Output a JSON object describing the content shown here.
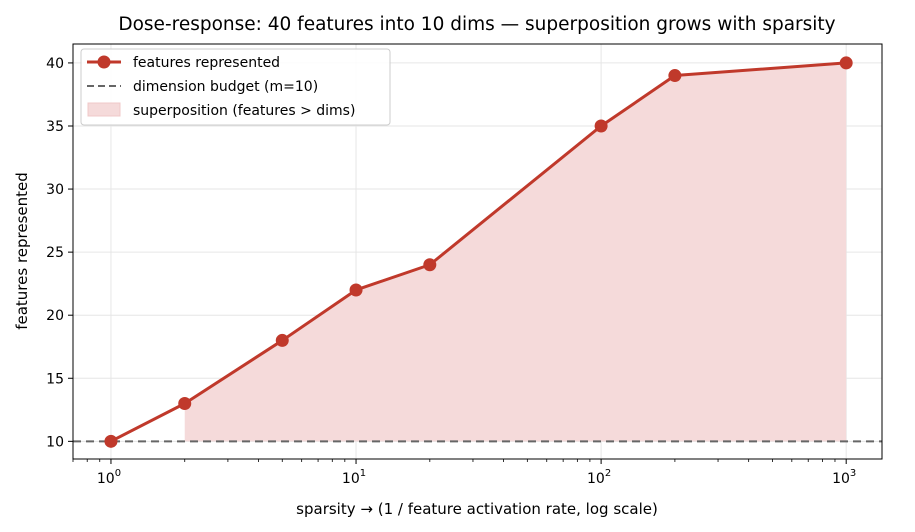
{
  "chart_data": {
    "type": "line",
    "title": "Dose-response: 40 features into 10 dims — superposition grows with sparsity",
    "xlabel": "sparsity  →  (1 / feature activation rate, log scale)",
    "ylabel": "features represented",
    "xscale": "log",
    "xlim": [
      0.7,
      1400
    ],
    "ylim": [
      8.6,
      41.5
    ],
    "xticks": [
      {
        "value": 1,
        "base": "10",
        "exp": "0"
      },
      {
        "value": 10,
        "base": "10",
        "exp": "1"
      },
      {
        "value": 100,
        "base": "10",
        "exp": "2"
      },
      {
        "value": 1000,
        "base": "10",
        "exp": "3"
      }
    ],
    "yticks": [
      10,
      15,
      20,
      25,
      30,
      35,
      40
    ],
    "grid": true,
    "legend_position": "top-left",
    "series": [
      {
        "name": "features represented",
        "kind": "line-markers",
        "color": "#c0392b",
        "x": [
          1,
          2,
          5,
          10,
          20,
          100,
          200,
          1000
        ],
        "y": [
          10,
          13,
          18,
          22,
          24,
          35,
          39,
          40
        ]
      },
      {
        "name": "dimension budget (m=10)",
        "kind": "hline",
        "color": "#666666",
        "y": 10
      },
      {
        "name": "superposition (features > dims)",
        "kind": "fill-between",
        "color": "#f5dada",
        "x": [
          2,
          5,
          10,
          20,
          100,
          200,
          1000
        ],
        "y_low": 10,
        "y_high": [
          13,
          18,
          22,
          24,
          35,
          39,
          40
        ]
      }
    ]
  }
}
